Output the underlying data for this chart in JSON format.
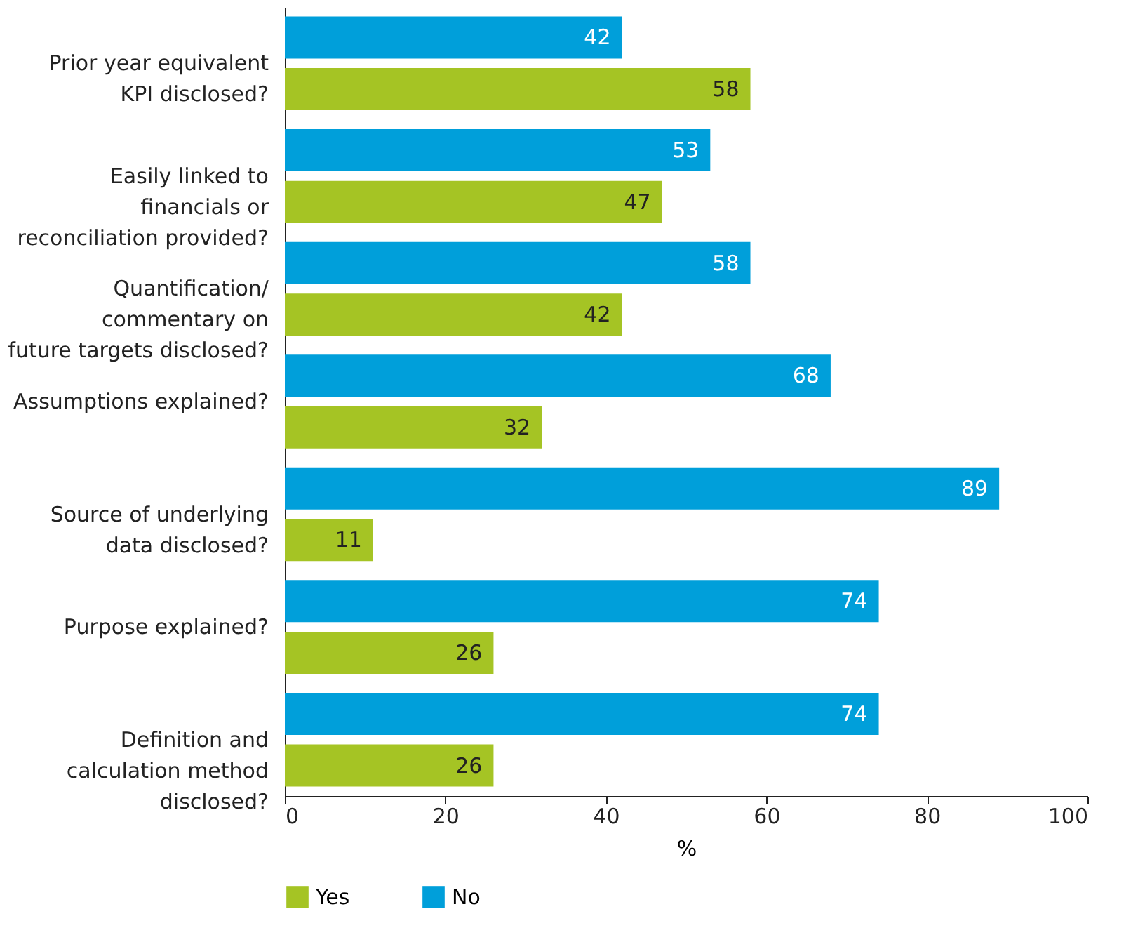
{
  "chart_data": {
    "type": "bar",
    "orientation": "horizontal",
    "categories": [
      "Prior year equivalent\nKPI disclosed?",
      "Easily linked to\nfinancials or\nreconciliation provided?",
      "Quantification/\ncommentary on\nfuture targets disclosed?",
      "Assumptions explained?",
      "Source of underlying\ndata disclosed?",
      "Purpose explained?",
      "Definition and\ncalculation method\ndisclosed?"
    ],
    "series": [
      {
        "name": "Yes",
        "color": "#a5c424",
        "values": [
          58,
          47,
          42,
          32,
          11,
          26,
          26
        ]
      },
      {
        "name": "No",
        "color": "#009fda",
        "values": [
          42,
          53,
          58,
          68,
          89,
          74,
          74
        ]
      }
    ],
    "xlabel": "%",
    "xlim": [
      0,
      100
    ],
    "xticks": [
      0,
      20,
      40,
      60,
      80,
      100
    ],
    "data_labels": true,
    "legend": "bottom",
    "grid": false
  }
}
